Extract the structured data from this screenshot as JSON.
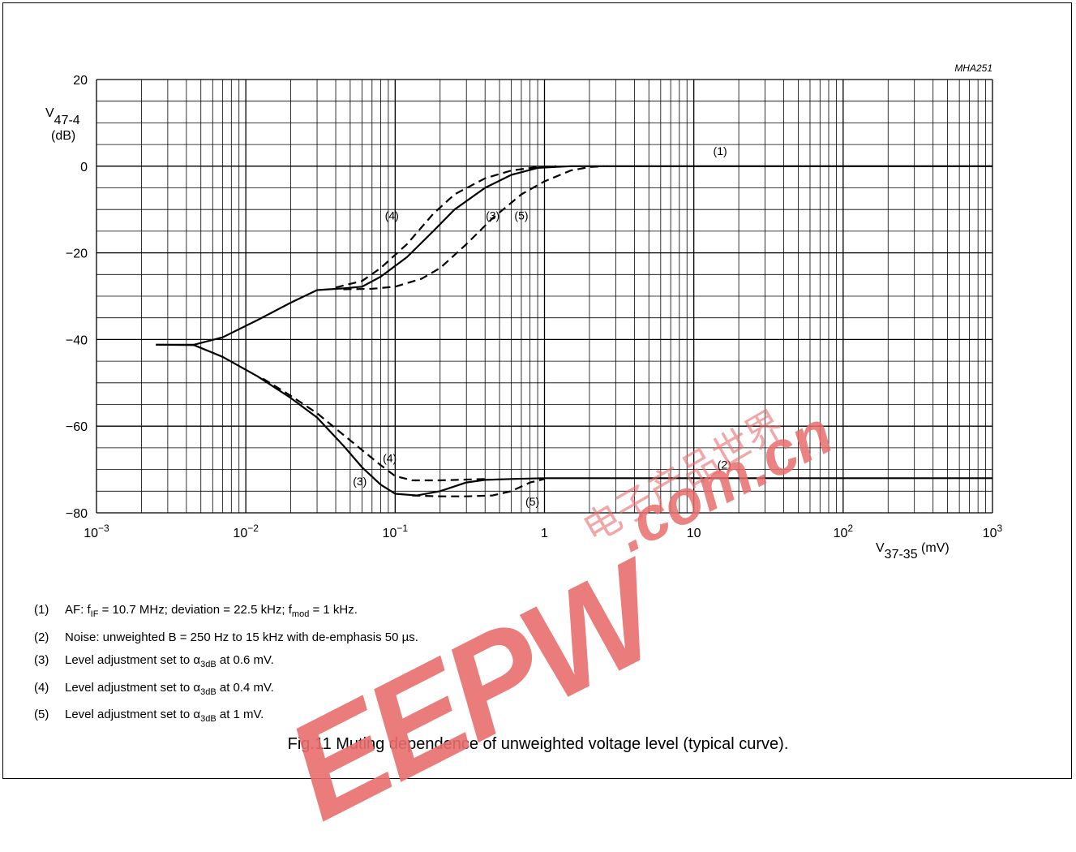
{
  "figure_id": "MHA251",
  "caption": "Fig.11  Muting dependence of unweighted voltage level (typical curve).",
  "watermark": {
    "brand": "EEPW",
    "domain": ".com.cn",
    "chinese": "电子产品世界",
    "color": "#e86e6e"
  },
  "notes": [
    {
      "num": "(1)",
      "parts": [
        {
          "t": "AF: f"
        },
        {
          "sub": "IF"
        },
        {
          "t": " = 10.7 MHz; deviation = 22.5 kHz; f"
        },
        {
          "sub": "mod"
        },
        {
          "t": " = 1 kHz."
        }
      ]
    },
    {
      "num": "(2)",
      "parts": [
        {
          "t": "Noise: unweighted B = 250 Hz to 15 kHz with de-emphasis 50 µs."
        }
      ]
    },
    {
      "num": "(3)",
      "parts": [
        {
          "t": "Level adjustment set to α"
        },
        {
          "sub": "3dB"
        },
        {
          "t": " at 0.6 mV."
        }
      ]
    },
    {
      "num": "(4)",
      "parts": [
        {
          "t": "Level adjustment set to α"
        },
        {
          "sub": "3dB"
        },
        {
          "t": " at 0.4 mV."
        }
      ]
    },
    {
      "num": "(5)",
      "parts": [
        {
          "t": "Level adjustment set to α"
        },
        {
          "sub": "3dB"
        },
        {
          "t": " at 1 mV."
        }
      ]
    }
  ],
  "chart_data": {
    "type": "line",
    "x_scale": "log",
    "xlim": [
      0.001,
      1000
    ],
    "ylim": [
      -80,
      20
    ],
    "grid": true,
    "xlabel": {
      "main": "V",
      "sub": "37-35",
      "unit": " (mV)"
    },
    "ylabel": {
      "main": "V",
      "sub": "47-4",
      "unit": "(dB)"
    },
    "x_ticks": [
      {
        "value": 0.001,
        "base": "10",
        "exp": "−3"
      },
      {
        "value": 0.01,
        "base": "10",
        "exp": "−2"
      },
      {
        "value": 0.1,
        "base": "10",
        "exp": "−1"
      },
      {
        "value": 1,
        "base": "1",
        "exp": ""
      },
      {
        "value": 10,
        "base": "10",
        "exp": ""
      },
      {
        "value": 100,
        "base": "10",
        "exp": "2"
      },
      {
        "value": 1000,
        "base": "10",
        "exp": "3"
      }
    ],
    "y_ticks": [
      {
        "value": 20,
        "label": "20"
      },
      {
        "value": 0,
        "label": "0"
      },
      {
        "value": -20,
        "label": "−20"
      },
      {
        "value": -40,
        "label": "−40"
      },
      {
        "value": -60,
        "label": "−60"
      },
      {
        "value": -80,
        "label": "−80"
      }
    ],
    "series": [
      {
        "name": "(1)",
        "style": "solid",
        "points": [
          [
            0.0025,
            -41.2
          ],
          [
            0.0045,
            -41.2
          ],
          [
            0.007,
            -39.5
          ],
          [
            0.012,
            -35.5
          ],
          [
            0.02,
            -31.5
          ],
          [
            0.03,
            -28.6
          ],
          [
            0.045,
            -28.2
          ],
          [
            0.06,
            -27.8
          ],
          [
            0.08,
            -25.5
          ],
          [
            0.12,
            -21.0
          ],
          [
            0.18,
            -15.0
          ],
          [
            0.25,
            -10.0
          ],
          [
            0.4,
            -5.0
          ],
          [
            0.6,
            -2.0
          ],
          [
            0.9,
            -0.4
          ],
          [
            1.5,
            0
          ],
          [
            1000,
            0
          ]
        ]
      },
      {
        "name": "(2)",
        "style": "solid",
        "points": [
          [
            0.0025,
            -41.2
          ],
          [
            0.0045,
            -41.3
          ],
          [
            0.007,
            -44.0
          ],
          [
            0.012,
            -48.5
          ],
          [
            0.02,
            -53.5
          ],
          [
            0.03,
            -58.0
          ],
          [
            0.045,
            -64.5
          ],
          [
            0.06,
            -69.5
          ],
          [
            0.08,
            -73.5
          ],
          [
            0.1,
            -75.6
          ],
          [
            0.14,
            -76.0
          ],
          [
            0.2,
            -75.0
          ],
          [
            0.3,
            -73.0
          ],
          [
            0.4,
            -72.4
          ],
          [
            0.6,
            -72.2
          ],
          [
            1.0,
            -72.0
          ],
          [
            3,
            -72.0
          ],
          [
            10,
            -72.0
          ],
          [
            1000,
            -72.0
          ]
        ]
      },
      {
        "name": "(4)",
        "style": "dashed",
        "points": [
          [
            0.04,
            -28.0
          ],
          [
            0.06,
            -26.5
          ],
          [
            0.08,
            -23.5
          ],
          [
            0.12,
            -18.0
          ],
          [
            0.18,
            -11.0
          ],
          [
            0.25,
            -6.5
          ],
          [
            0.4,
            -2.8
          ],
          [
            0.6,
            -1.0
          ],
          [
            0.9,
            -0.2
          ],
          [
            1.2,
            0
          ]
        ]
      },
      {
        "name": "(5)",
        "style": "dashed",
        "points": [
          [
            0.045,
            -28.4
          ],
          [
            0.07,
            -28.3
          ],
          [
            0.1,
            -27.8
          ],
          [
            0.15,
            -26.0
          ],
          [
            0.2,
            -23.5
          ],
          [
            0.3,
            -18.0
          ],
          [
            0.45,
            -12.0
          ],
          [
            0.7,
            -6.5
          ],
          [
            1.0,
            -3.5
          ],
          [
            1.5,
            -1.0
          ],
          [
            2.0,
            -0.2
          ],
          [
            2.5,
            0
          ]
        ]
      },
      {
        "name": "(4)",
        "style": "dashed",
        "points": [
          [
            0.013,
            -49.0
          ],
          [
            0.02,
            -53.0
          ],
          [
            0.03,
            -57.0
          ],
          [
            0.045,
            -62.0
          ],
          [
            0.06,
            -65.5
          ],
          [
            0.08,
            -69.0
          ],
          [
            0.1,
            -71.5
          ],
          [
            0.13,
            -72.5
          ],
          [
            0.2,
            -72.5
          ],
          [
            0.4,
            -72.2
          ]
        ]
      },
      {
        "name": "(5)",
        "style": "dashed",
        "points": [
          [
            0.13,
            -76.0
          ],
          [
            0.2,
            -76.2
          ],
          [
            0.3,
            -76.2
          ],
          [
            0.45,
            -76.0
          ],
          [
            0.6,
            -75.0
          ],
          [
            0.8,
            -73.0
          ],
          [
            1.0,
            -72.2
          ]
        ]
      }
    ],
    "annotations": [
      {
        "text": "(1)",
        "x": 15,
        "y": 2.6
      },
      {
        "text": "(2)",
        "x": 16,
        "y": -69.8
      },
      {
        "text": "(4)",
        "x": 0.095,
        "y": -12.3
      },
      {
        "text": "(3)",
        "x": 0.45,
        "y": -12.3
      },
      {
        "text": "(5)",
        "x": 0.7,
        "y": -12.3
      },
      {
        "text": "(4)",
        "x": 0.092,
        "y": -68.3
      },
      {
        "text": "(3)",
        "x": 0.058,
        "y": -73.6
      },
      {
        "text": "(5)",
        "x": 0.83,
        "y": -78.3
      }
    ]
  }
}
